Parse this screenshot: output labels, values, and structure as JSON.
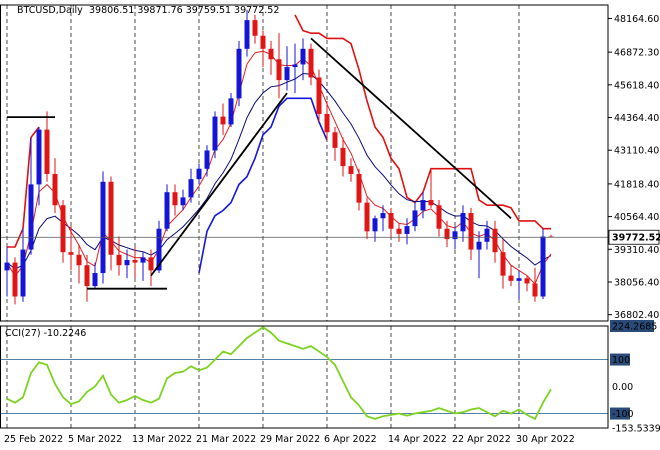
{
  "chart_data": [
    {
      "type": "candlestick",
      "header": {
        "symbol": "BTCUSD,Daily",
        "ohlc": "39806.51 39871.76 39759.51 39772.52"
      },
      "y_ticks": [
        "48164.60",
        "46872.30",
        "45618.40",
        "44364.40",
        "43110.40",
        "41818.40",
        "40564.40",
        "39310.40",
        "38056.40",
        "36802.40"
      ],
      "ylim": [
        36560,
        48680
      ],
      "last_price_label": "39772.52",
      "last_price": 39772.52,
      "x_ticks": [
        {
          "label": "25 Feb 2022",
          "i": 0
        },
        {
          "label": "5 Mar 2022",
          "i": 8
        },
        {
          "label": "13 Mar 2022",
          "i": 16
        },
        {
          "label": "21 Mar 2022",
          "i": 24
        },
        {
          "label": "29 Mar 2022",
          "i": 32
        },
        {
          "label": "6 Apr 2022",
          "i": 40
        },
        {
          "label": "14 Apr 2022",
          "i": 48
        },
        {
          "label": "22 Apr 2022",
          "i": 56
        },
        {
          "label": "30 Apr 2022",
          "i": 64
        }
      ],
      "candles": [
        [
          38500,
          39400,
          37500,
          38800
        ],
        [
          38800,
          39000,
          37200,
          37500
        ],
        [
          37500,
          40100,
          37300,
          39300
        ],
        [
          39300,
          43600,
          39100,
          41800
        ],
        [
          41800,
          44000,
          41000,
          43900
        ],
        [
          43900,
          44600,
          41900,
          42200
        ],
        [
          42200,
          42800,
          40700,
          41000
        ],
        [
          41000,
          41200,
          38800,
          39200
        ],
        [
          39200,
          40200,
          38500,
          39100
        ],
        [
          39100,
          39500,
          38000,
          38700
        ],
        [
          38700,
          39100,
          37300,
          37900
        ],
        [
          37900,
          38800,
          37800,
          38400
        ],
        [
          38400,
          42300,
          38000,
          41900
        ],
        [
          41900,
          42100,
          38500,
          39100
        ],
        [
          39100,
          39800,
          38300,
          38700
        ],
        [
          38700,
          39300,
          38200,
          38900
        ],
        [
          38900,
          39400,
          38200,
          38800
        ],
        [
          38800,
          39200,
          38100,
          39000
        ],
        [
          39000,
          39300,
          37900,
          38500
        ],
        [
          38500,
          40400,
          38400,
          40100
        ],
        [
          40100,
          41800,
          40000,
          41500
        ],
        [
          41500,
          41800,
          40600,
          41000
        ],
        [
          41000,
          41600,
          40800,
          41300
        ],
        [
          41300,
          42400,
          41100,
          42000
        ],
        [
          42000,
          42600,
          41800,
          42400
        ],
        [
          42400,
          43300,
          42100,
          43100
        ],
        [
          43100,
          44600,
          42800,
          44400
        ],
        [
          44400,
          44900,
          43700,
          44100
        ],
        [
          44100,
          45300,
          44000,
          45100
        ],
        [
          45100,
          47300,
          44800,
          47000
        ],
        [
          47000,
          48500,
          46700,
          48100
        ],
        [
          48100,
          48300,
          47200,
          47500
        ],
        [
          47500,
          47700,
          46300,
          47000
        ],
        [
          47000,
          47300,
          46000,
          46600
        ],
        [
          46600,
          47600,
          45100,
          45800
        ],
        [
          45800,
          47100,
          45400,
          46300
        ],
        [
          46300,
          47200,
          45300,
          46400
        ],
        [
          46400,
          47400,
          45800,
          47000
        ],
        [
          47000,
          47200,
          45600,
          45900
        ],
        [
          45900,
          46200,
          44200,
          44500
        ],
        [
          44500,
          45000,
          43500,
          43800
        ],
        [
          43800,
          44000,
          42700,
          43200
        ],
        [
          43200,
          43600,
          42100,
          42500
        ],
        [
          42500,
          42800,
          41900,
          42200
        ],
        [
          42200,
          42400,
          40800,
          41100
        ],
        [
          41100,
          41300,
          39700,
          40000
        ],
        [
          40000,
          40600,
          39600,
          40500
        ],
        [
          40500,
          41000,
          40000,
          40700
        ],
        [
          40700,
          40900,
          39800,
          40100
        ],
        [
          40100,
          40300,
          39600,
          39900
        ],
        [
          39900,
          40500,
          39500,
          40200
        ],
        [
          40200,
          41100,
          40000,
          40800
        ],
        [
          40800,
          41500,
          40500,
          41200
        ],
        [
          41200,
          42400,
          40900,
          41000
        ],
        [
          41000,
          41200,
          39800,
          40100
        ],
        [
          40100,
          40400,
          39400,
          39700
        ],
        [
          39700,
          40200,
          39300,
          40000
        ],
        [
          40000,
          41000,
          39600,
          40700
        ],
        [
          40700,
          40900,
          38900,
          39300
        ],
        [
          39300,
          40000,
          38200,
          39600
        ],
        [
          39600,
          40400,
          39300,
          40100
        ],
        [
          40100,
          40400,
          38800,
          39200
        ],
        [
          39200,
          39700,
          37800,
          38300
        ],
        [
          38300,
          38700,
          37900,
          38100
        ],
        [
          38100,
          38500,
          37400,
          38200
        ],
        [
          38200,
          38300,
          37700,
          38000
        ],
        [
          38000,
          38600,
          37300,
          37500
        ],
        [
          37500,
          40100,
          37400,
          39800
        ],
        [
          39800,
          39870,
          39760,
          39773
        ]
      ],
      "cci": {
        "label": "CCI(27) -10.2246",
        "ticks": [
          "224.2685",
          "100",
          "0.00",
          "-100",
          "-153.5339"
        ],
        "ylim": [
          -153.5339,
          224.2685
        ],
        "values": [
          -45,
          -60,
          -40,
          50,
          90,
          80,
          10,
          -40,
          -65,
          -55,
          -20,
          0,
          40,
          -30,
          -60,
          -50,
          -35,
          -50,
          -60,
          -45,
          30,
          50,
          55,
          75,
          60,
          70,
          100,
          130,
          120,
          150,
          180,
          200,
          220,
          200,
          170,
          160,
          150,
          140,
          150,
          130,
          110,
          80,
          20,
          -40,
          -70,
          -110,
          -120,
          -110,
          -105,
          -100,
          -108,
          -100,
          -95,
          -90,
          -80,
          -90,
          -100,
          -95,
          -85,
          -80,
          -95,
          -110,
          -90,
          -100,
          -85,
          -105,
          -120,
          -60,
          -10
        ]
      },
      "colors": {
        "bull": "#1515d6",
        "bear": "#e01616",
        "ma_fast": "#e02020",
        "ma_slow": "#0a0a7a",
        "trail_red": "#e01010",
        "trail_blue": "#1515e0",
        "cci": "#7ed320"
      }
    }
  ]
}
